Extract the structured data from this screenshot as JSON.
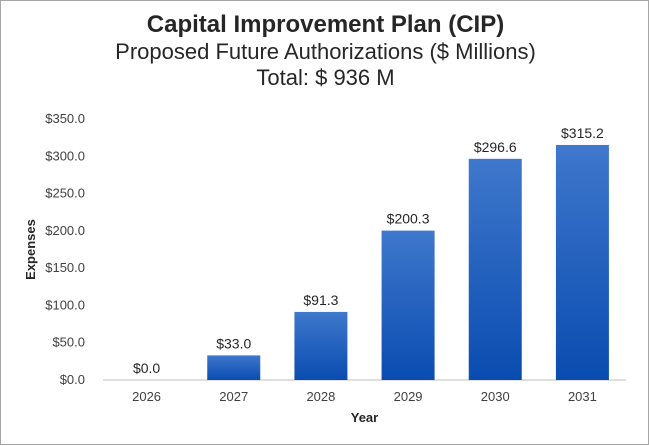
{
  "chart_data": {
    "type": "bar",
    "title": "Capital Improvement Plan (CIP)",
    "subtitle": "Proposed Future Authorizations ($ Millions)",
    "total_label": "Total: $ 936 M",
    "xlabel": "Year",
    "ylabel": "Expenses",
    "categories": [
      "2026",
      "2027",
      "2028",
      "2029",
      "2030",
      "2031"
    ],
    "values": [
      0.0,
      33.0,
      91.3,
      200.3,
      296.6,
      315.2
    ],
    "data_labels": [
      "$0.0",
      "$33.0",
      "$91.3",
      "$200.3",
      "$296.6",
      "$315.2"
    ],
    "yticks": [
      "$0.0",
      "$50.0",
      "$100.0",
      "$150.0",
      "$200.0",
      "$250.0",
      "$300.0",
      "$350.0"
    ],
    "ylim": [
      0,
      350
    ],
    "grid": false,
    "legend": "none",
    "bar_color_top": "#3f78cc",
    "bar_color_bottom": "#0a4cb0"
  }
}
